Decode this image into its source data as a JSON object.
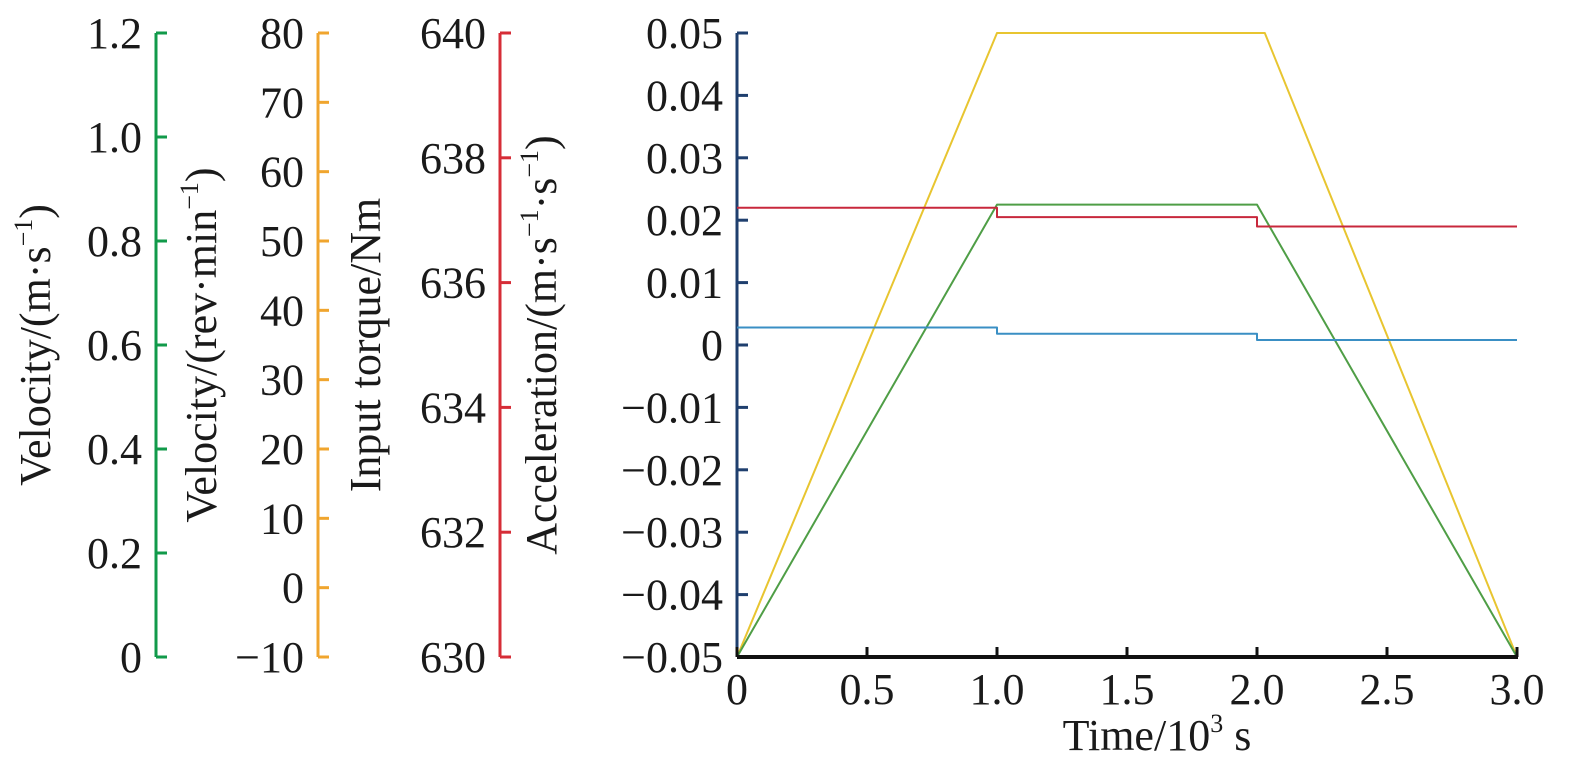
{
  "chart_data": {
    "type": "line",
    "x_axis": {
      "label": "Time/10",
      "label_sup": "3",
      "label_suffix": " s",
      "range": [
        0,
        3.0
      ],
      "ticks": [
        0,
        0.5,
        1.0,
        1.5,
        2.0,
        2.5,
        3.0
      ],
      "tick_labels": [
        "0",
        "0.5",
        "1.0",
        "1.5",
        "2.0",
        "2.5",
        "3.0"
      ]
    },
    "y_axes": [
      {
        "id": "velocity_ms",
        "title_parts": [
          [
            "Velocity/(m",
            ""
          ],
          [
            "·",
            ""
          ],
          [
            "s",
            ""
          ],
          [
            "−1",
            "sup"
          ],
          [
            ")",
            ""
          ]
        ],
        "color": "#119a4a",
        "range": [
          0,
          1.2
        ],
        "ticks": [
          0,
          0.2,
          0.4,
          0.6,
          0.8,
          1.0,
          1.2
        ],
        "tick_labels": [
          "0",
          "0.2",
          "0.4",
          "0.6",
          "0.8",
          "1.0",
          "1.2"
        ]
      },
      {
        "id": "velocity_rpm",
        "title_parts": [
          [
            "Velocity/(rev",
            ""
          ],
          [
            "·",
            ""
          ],
          [
            "min",
            ""
          ],
          [
            "−1",
            "sup"
          ],
          [
            ")",
            ""
          ]
        ],
        "color": "#f0a52e",
        "range": [
          -10,
          80
        ],
        "ticks": [
          -10,
          0,
          10,
          20,
          30,
          40,
          50,
          60,
          70,
          80
        ],
        "tick_labels": [
          "−10",
          "0",
          "10",
          "20",
          "30",
          "40",
          "50",
          "60",
          "70",
          "80"
        ]
      },
      {
        "id": "input_torque",
        "title_parts": [
          [
            "Input torque/Nm",
            ""
          ]
        ],
        "color": "#d62d37",
        "range": [
          630,
          640
        ],
        "ticks": [
          630,
          632,
          634,
          636,
          638,
          640
        ],
        "tick_labels": [
          "630",
          "632",
          "634",
          "636",
          "638",
          "640"
        ]
      },
      {
        "id": "acceleration",
        "title_parts": [
          [
            "Acceleration/(m",
            ""
          ],
          [
            "·",
            ""
          ],
          [
            "s",
            ""
          ],
          [
            "−1",
            "sup"
          ],
          [
            "·",
            ""
          ],
          [
            "s",
            ""
          ],
          [
            "−1",
            "sup"
          ],
          [
            ")",
            ""
          ]
        ],
        "color": "#1f3f6e",
        "range": [
          -0.05,
          0.05
        ],
        "ticks": [
          -0.05,
          -0.04,
          -0.03,
          -0.02,
          -0.01,
          0,
          0.01,
          0.02,
          0.03,
          0.04,
          0.05
        ],
        "tick_labels": [
          "−0.05",
          "−0.04",
          "−0.03",
          "−0.02",
          "−0.01",
          "0",
          "0.01",
          "0.02",
          "0.03",
          "0.04",
          "0.05"
        ]
      }
    ],
    "series": [
      {
        "axis": "velocity_rpm",
        "color": "#e8c530",
        "points": [
          [
            0,
            -10
          ],
          [
            1.0,
            80
          ],
          [
            2.03,
            80
          ],
          [
            3.0,
            -10
          ]
        ]
      },
      {
        "axis": "velocity_ms",
        "color": "#4f9e46",
        "points": [
          [
            0,
            0
          ],
          [
            1.0,
            0.87
          ],
          [
            2.0,
            0.87
          ],
          [
            3.0,
            0
          ]
        ]
      },
      {
        "axis": "input_torque",
        "color": "#c8283c",
        "points": [
          [
            0,
            637.2
          ],
          [
            1.0,
            637.2
          ],
          [
            1.0,
            637.05
          ],
          [
            2.0,
            637.05
          ],
          [
            2.0,
            636.9
          ],
          [
            3.0,
            636.9
          ]
        ]
      },
      {
        "axis": "acceleration",
        "color": "#3a8fc4",
        "points": [
          [
            0,
            0.0028
          ],
          [
            1.0,
            0.0028
          ],
          [
            1.0,
            0.0018
          ],
          [
            2.0,
            0.0018
          ],
          [
            2.0,
            0.0008
          ],
          [
            3.0,
            0.0008
          ]
        ]
      }
    ],
    "grid": false,
    "legend": "none"
  }
}
